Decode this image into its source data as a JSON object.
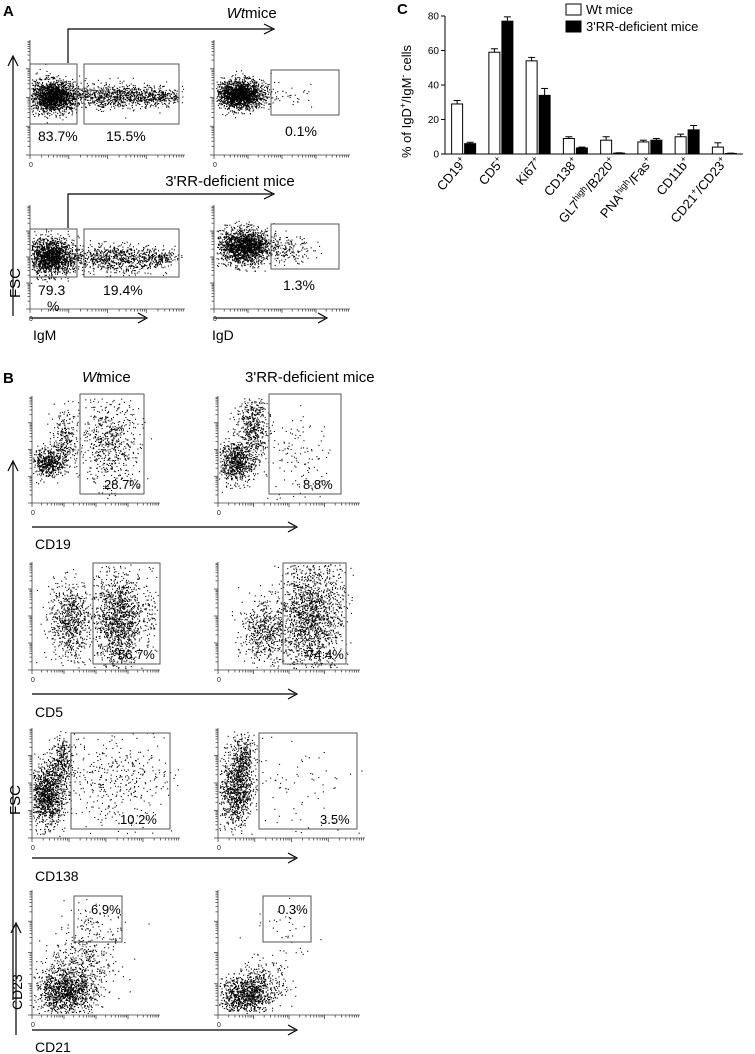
{
  "panel_labels": {
    "a": "A",
    "b": "B",
    "c": "C"
  },
  "panel_a": {
    "wt_title": "Wt",
    "wt_title_rest": " mice",
    "ko_title": "3'RR-deficient mice",
    "y_axis_label": "FSC",
    "x_axis_igm": "IgM",
    "x_axis_igd": "IgD",
    "wt_igm_neg_pct": "83.7%",
    "wt_igm_pos_pct": "15.5%",
    "wt_igd_pct": "0.1%",
    "ko_igm_neg_pct": "79.3",
    "ko_igm_neg_pct_suffix": "%",
    "ko_igm_pos_pct": "19.4%",
    "ko_igd_pct": "1.3%",
    "origin_zero": "0"
  },
  "panel_b": {
    "wt_col_title": "Wt",
    "wt_col_title_rest": " mice",
    "ko_col_title": "3'RR-deficient mice",
    "y_axis_label": "FSC",
    "rows": [
      {
        "marker": "CD19",
        "wt_pct": "28.7%",
        "ko_pct": "8.8%"
      },
      {
        "marker": "CD5",
        "wt_pct": "56.7%",
        "ko_pct": "74.4%"
      },
      {
        "marker": "CD138",
        "wt_pct": "10.2%",
        "ko_pct": "3.5%"
      }
    ],
    "last_row": {
      "x_label": "CD21",
      "y_label": "CD23",
      "wt_pct": "6.9%",
      "ko_pct": "0.3%"
    },
    "origin_zero": "0"
  },
  "chart_data": {
    "type": "bar",
    "ylabel_parts": {
      "pre": "% of IgD",
      "sup1": "+",
      "mid": "/IgM",
      "sup2": "-",
      "post": " cells"
    },
    "ylim": [
      0,
      80
    ],
    "yticks": [
      0,
      20,
      40,
      60,
      80
    ],
    "legend_position": "top-right",
    "categories": [
      {
        "base": "CD19",
        "sup": "+"
      },
      {
        "base": "CD5",
        "sup": "+"
      },
      {
        "base": "Ki67",
        "sup": "+"
      },
      {
        "base": "CD138",
        "sup": "+"
      },
      {
        "base": "GL7",
        "sup": "high",
        "base2": "/B220",
        "sup2": "+"
      },
      {
        "base": "PNA",
        "sup": "high",
        "base2": "/Fas",
        "sup2": "+"
      },
      {
        "base": "CD11b",
        "sup": "+"
      },
      {
        "base": "CD21",
        "sup": "+",
        "base2": "/CD23",
        "sup2": "+"
      }
    ],
    "series": [
      {
        "name": "Wt mice",
        "color": "#ffffff",
        "values": [
          29,
          59,
          54,
          9,
          8,
          7,
          10,
          4
        ],
        "errors": [
          2,
          2,
          2,
          1,
          2,
          1,
          1.5,
          2.5
        ]
      },
      {
        "name": "3'RR-deficient mice",
        "color": "#000000",
        "values": [
          6,
          77,
          34,
          3.5,
          0.5,
          8,
          14,
          0.3
        ],
        "errors": [
          0.8,
          2.5,
          4,
          0.5,
          0.2,
          1,
          2.5,
          0.2
        ]
      }
    ]
  }
}
